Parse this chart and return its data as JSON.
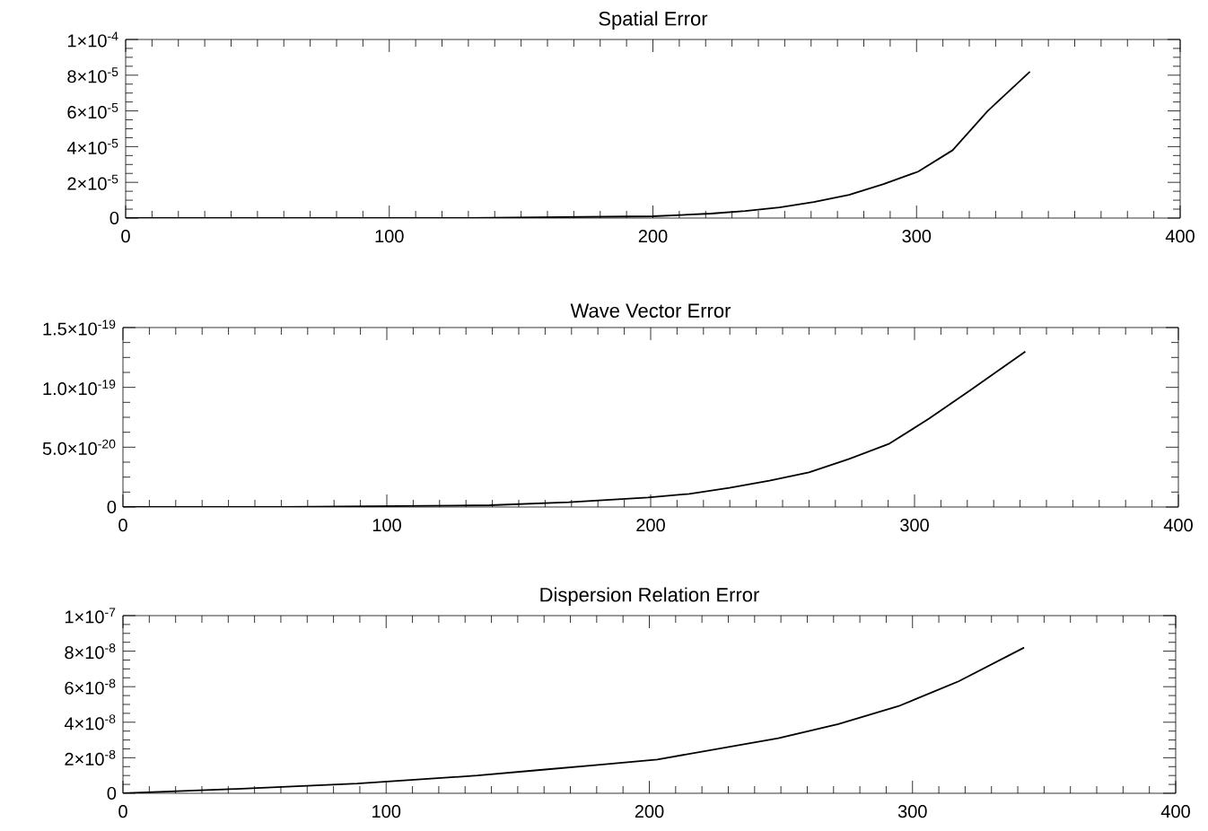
{
  "chart_data": [
    {
      "type": "line",
      "title": "Spatial Error",
      "color": "#000000",
      "x": [
        0,
        130,
        200,
        222,
        235,
        248,
        261,
        274.4,
        287.5,
        300.6,
        313.7,
        327,
        343
      ],
      "values": [
        0,
        0,
        1e-06,
        2.5e-06,
        4e-06,
        6e-06,
        9e-06,
        1.3e-05,
        1.9e-05,
        2.6e-05,
        3.8e-05,
        6e-05,
        8.2e-05
      ],
      "xlim": [
        0,
        400
      ],
      "xticks": [
        0,
        100,
        200,
        300,
        400
      ],
      "ylim": [
        0,
        0.0001
      ],
      "yticks": [
        0,
        {
          "value": 2e-05,
          "label": "2×10$^{-5}$"
        },
        {
          "value": 4e-05,
          "label": "4×10$^{-5}$"
        },
        {
          "value": 6e-05,
          "label": "6×10$^{-5}$"
        },
        {
          "value": 8e-05,
          "label": "8×10$^{-5}$"
        },
        {
          "value": 0.0001,
          "label": "1×10$^{-4}$"
        }
      ]
    },
    {
      "type": "line",
      "title": "Wave Vector Error",
      "color": "#000000",
      "x": [
        0,
        60,
        139,
        169,
        199,
        214.6,
        229.8,
        245,
        260,
        275,
        290.5,
        305.6,
        320.7,
        342
      ],
      "values": [
        0,
        0,
        1.5e-21,
        4e-21,
        8e-21,
        1.1e-20,
        1.6e-20,
        2.2e-20,
        2.9e-20,
        4e-20,
        5.3e-20,
        7.4e-20,
        9.7e-20,
        1.3e-19
      ],
      "xlim": [
        0,
        400
      ],
      "xticks": [
        0,
        100,
        200,
        300,
        400
      ],
      "ylim": [
        0,
        1.5e-19
      ],
      "yticks": [
        0,
        {
          "value": 5e-20,
          "label": "5.0×10$^{-20}$"
        },
        {
          "value": 1e-19,
          "label": "1.0×10$^{-19}$"
        },
        {
          "value": 1.5e-19,
          "label": "1.5×10$^{-19}$"
        }
      ]
    },
    {
      "type": "line",
      "title": "Dispersion Relation Error",
      "color": "#000000",
      "x": [
        0,
        43.3,
        89,
        134.7,
        157.5,
        180.4,
        203,
        226,
        249,
        271.8,
        294.6,
        317.5,
        342.4
      ],
      "values": [
        0,
        2.5e-09,
        5.5e-09,
        1e-08,
        1.3e-08,
        1.6e-08,
        1.9e-08,
        2.5e-08,
        3.1e-08,
        3.9e-08,
        4.9e-08,
        6.3e-08,
        8.2e-08
      ],
      "xlim": [
        0,
        400
      ],
      "xticks": [
        0,
        100,
        200,
        300,
        400
      ],
      "ylim": [
        0,
        1e-07
      ],
      "yticks": [
        0,
        {
          "value": 2e-08,
          "label": "2×10$^{-8}$"
        },
        {
          "value": 4e-08,
          "label": "4×10$^{-8}$"
        },
        {
          "value": 6e-08,
          "label": "6×10$^{-8}$"
        },
        {
          "value": 8e-08,
          "label": "8×10$^{-8}$"
        },
        {
          "value": 1e-07,
          "label": "1×10$^{-7}$"
        }
      ]
    }
  ]
}
